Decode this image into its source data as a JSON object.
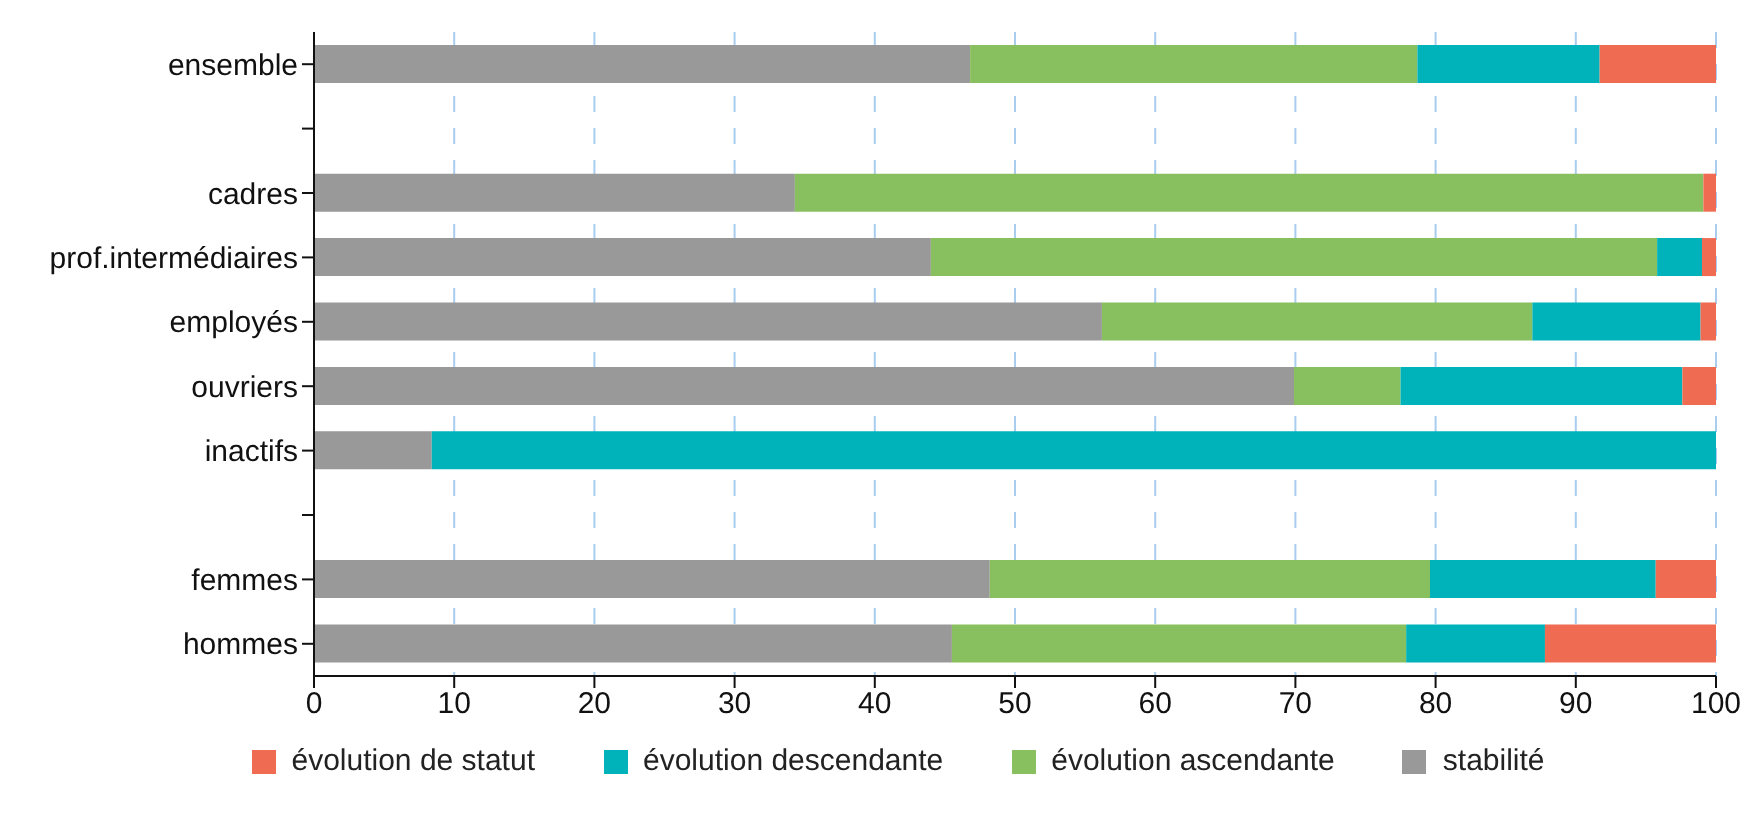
{
  "chart_data": {
    "type": "bar",
    "orientation": "horizontal",
    "stacked": true,
    "categories": [
      "ensemble",
      null,
      "cadres",
      "prof.intermédiaires",
      "employés",
      "ouvriers",
      "inactifs",
      null,
      "femmes",
      "hommes"
    ],
    "series": [
      {
        "name": "stabilité",
        "color": "#999999",
        "values": [
          46.8,
          null,
          34.3,
          44.0,
          56.2,
          69.9,
          8.4,
          null,
          48.2,
          45.5
        ]
      },
      {
        "name": "évolution ascendante",
        "color": "#88bf5f",
        "values": [
          31.9,
          null,
          64.8,
          51.8,
          30.7,
          7.6,
          0,
          null,
          31.4,
          32.4
        ]
      },
      {
        "name": "évolution descendante",
        "color": "#00b2ba",
        "values": [
          13.0,
          null,
          0,
          3.2,
          12.0,
          20.1,
          91.6,
          null,
          16.1,
          9.9
        ]
      },
      {
        "name": "évolution de statut",
        "color": "#ef6b52",
        "values": [
          8.3,
          null,
          0.9,
          1.0,
          1.1,
          2.4,
          0,
          null,
          4.3,
          12.2
        ]
      }
    ],
    "xlim": [
      0,
      100
    ],
    "xticks": [
      0,
      10,
      20,
      30,
      40,
      50,
      60,
      70,
      80,
      90,
      100
    ],
    "grid": "x",
    "legend": "bottom"
  }
}
